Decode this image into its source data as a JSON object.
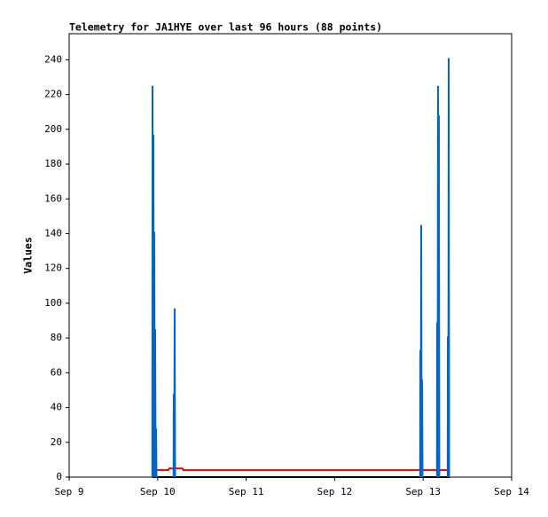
{
  "chart_data": {
    "type": "line",
    "title": "Telemetry for JA1HYE over last 96 hours (88 points)",
    "ylabel": "Values",
    "xlim": [
      9,
      14
    ],
    "xticks": [
      {
        "value": 9,
        "label": "Sep 9"
      },
      {
        "value": 10,
        "label": "Sep 10"
      },
      {
        "value": 11,
        "label": "Sep 11"
      },
      {
        "value": 12,
        "label": "Sep 12"
      },
      {
        "value": 13,
        "label": "Sep 13"
      },
      {
        "value": 14,
        "label": "Sep 14"
      }
    ],
    "ylim": [
      0,
      255
    ],
    "yticks": [
      0,
      20,
      40,
      60,
      80,
      100,
      120,
      140,
      160,
      180,
      200,
      220,
      240
    ],
    "grid": false,
    "series": [
      {
        "color": "#000000",
        "x": [
          9.94,
          13.3
        ],
        "values": [
          0,
          0
        ]
      },
      {
        "color": "#ee0000",
        "x": [
          9.94,
          10.12,
          10.13,
          10.28,
          10.29,
          13.3
        ],
        "values": [
          4,
          4,
          5,
          5,
          4,
          4
        ]
      },
      {
        "color": "#0066cc",
        "x": [
          9.94,
          9.942,
          9.947,
          9.952,
          9.957,
          9.962,
          9.967,
          9.972,
          9.977,
          9.982,
          9.987,
          null,
          10.18,
          10.182,
          10.187,
          10.192,
          10.197,
          null,
          12.966,
          12.968,
          12.973,
          12.978,
          12.983,
          12.988,
          12.993,
          null,
          13.156,
          13.158,
          13.163,
          13.168,
          13.173,
          13.178,
          13.183,
          null,
          13.277,
          13.279,
          13.284,
          13.289,
          13.294
        ],
        "values": [
          0,
          225,
          0,
          197,
          0,
          141,
          0,
          85,
          0,
          28,
          0,
          null,
          0,
          48,
          0,
          97,
          0,
          null,
          0,
          73,
          0,
          145,
          0,
          56,
          0,
          null,
          0,
          89,
          0,
          225,
          0,
          208,
          0,
          null,
          0,
          81,
          0,
          241,
          0
        ]
      }
    ]
  }
}
